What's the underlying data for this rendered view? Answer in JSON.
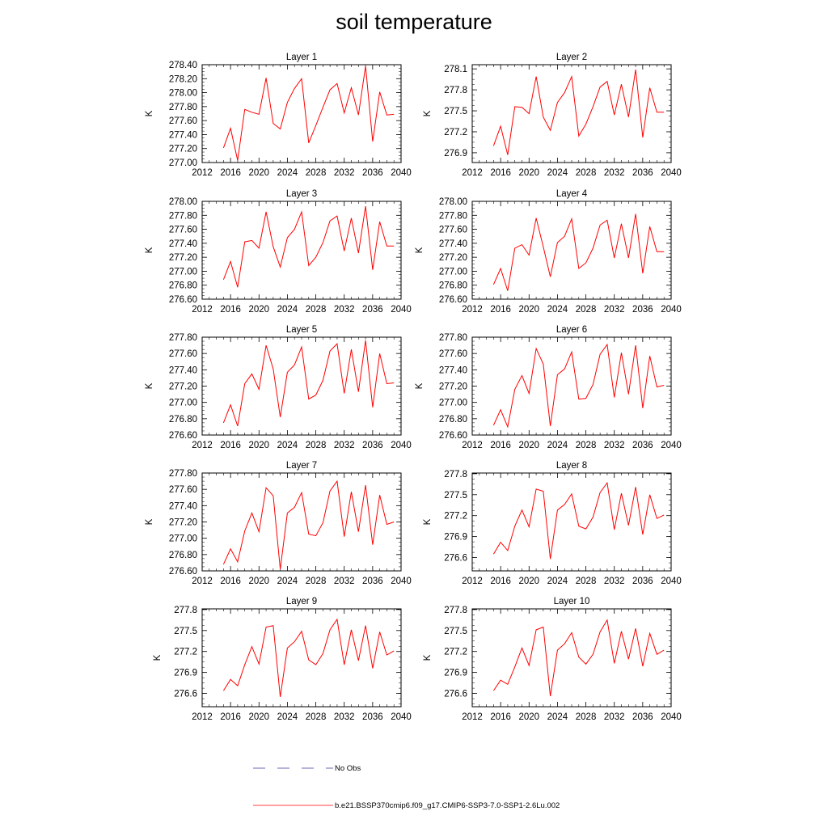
{
  "page_title": "soil temperature",
  "legend": {
    "no_obs_label": "No Obs",
    "no_obs_color": "#3a3aa0",
    "model_label": "b.e21.BSSP370cmip6.f09_g17.CMIP6-SSP3-7.0-SSP1-2.6Lu.002",
    "model_color": "#ff0000"
  },
  "chart_data": [
    {
      "type": "line",
      "title": "Layer 1",
      "ylabel": "K",
      "xlim": [
        2012,
        2040
      ],
      "xticks": [
        "2012",
        "2016",
        "2020",
        "2024",
        "2028",
        "2032",
        "2036",
        "2040"
      ],
      "ylim": [
        277.0,
        278.4
      ],
      "yticks": [
        "277.00",
        "277.20",
        "277.40",
        "277.60",
        "277.80",
        "278.00",
        "278.20",
        "278.40"
      ],
      "series": [
        {
          "x": [
            2015,
            2016,
            2017,
            2018,
            2019,
            2020,
            2021,
            2022,
            2023,
            2024,
            2025,
            2026,
            2027,
            2028,
            2029,
            2030,
            2031,
            2032,
            2033,
            2034,
            2035,
            2036,
            2037,
            2038,
            2039
          ],
          "values": [
            277.21,
            277.49,
            277.03,
            277.76,
            277.72,
            277.69,
            278.21,
            277.56,
            277.48,
            277.86,
            278.06,
            278.2,
            277.28,
            277.53,
            277.79,
            278.04,
            278.13,
            277.71,
            278.07,
            277.68,
            278.38,
            277.3,
            278.01,
            277.68,
            277.69
          ]
        }
      ]
    },
    {
      "type": "line",
      "title": "Layer 2",
      "ylabel": "K",
      "xlim": [
        2012,
        2040
      ],
      "xticks": [
        "2012",
        "2016",
        "2020",
        "2024",
        "2028",
        "2032",
        "2036",
        "2040"
      ],
      "ylim": [
        276.76,
        278.16
      ],
      "yticks": [
        "276.9",
        "277.2",
        "277.5",
        "277.8",
        "278.1"
      ],
      "series": [
        {
          "x": [
            2015,
            2016,
            2017,
            2018,
            2019,
            2020,
            2021,
            2022,
            2023,
            2024,
            2025,
            2026,
            2027,
            2028,
            2029,
            2030,
            2031,
            2032,
            2033,
            2034,
            2035,
            2036,
            2037,
            2038,
            2039
          ],
          "values": [
            277.0,
            277.28,
            276.87,
            277.56,
            277.55,
            277.46,
            277.99,
            277.41,
            277.22,
            277.62,
            277.76,
            277.99,
            277.14,
            277.31,
            277.56,
            277.84,
            277.92,
            277.44,
            277.88,
            277.41,
            278.09,
            277.12,
            277.83,
            277.48,
            277.48
          ]
        }
      ]
    },
    {
      "type": "line",
      "title": "Layer 3",
      "ylabel": "K",
      "xlim": [
        2012,
        2040
      ],
      "xticks": [
        "2012",
        "2016",
        "2020",
        "2024",
        "2028",
        "2032",
        "2036",
        "2040"
      ],
      "ylim": [
        276.6,
        278.0
      ],
      "yticks": [
        "276.60",
        "276.80",
        "277.00",
        "277.20",
        "277.40",
        "277.60",
        "277.80",
        "278.00"
      ],
      "series": [
        {
          "x": [
            2015,
            2016,
            2017,
            2018,
            2019,
            2020,
            2021,
            2022,
            2023,
            2024,
            2025,
            2026,
            2027,
            2028,
            2029,
            2030,
            2031,
            2032,
            2033,
            2034,
            2035,
            2036,
            2037,
            2038,
            2039
          ],
          "values": [
            276.88,
            277.14,
            276.77,
            277.42,
            277.44,
            277.33,
            277.85,
            277.35,
            277.06,
            277.48,
            277.6,
            277.85,
            277.08,
            277.2,
            277.41,
            277.72,
            277.79,
            277.29,
            277.76,
            277.26,
            277.93,
            277.02,
            277.71,
            277.36,
            277.36
          ]
        }
      ]
    },
    {
      "type": "line",
      "title": "Layer 4",
      "ylabel": "K",
      "xlim": [
        2012,
        2040
      ],
      "xticks": [
        "2012",
        "2016",
        "2020",
        "2024",
        "2028",
        "2032",
        "2036",
        "2040"
      ],
      "ylim": [
        276.6,
        278.0
      ],
      "yticks": [
        "276.60",
        "276.80",
        "277.00",
        "277.20",
        "277.40",
        "277.60",
        "277.80",
        "278.00"
      ],
      "series": [
        {
          "x": [
            2015,
            2016,
            2017,
            2018,
            2019,
            2020,
            2021,
            2022,
            2023,
            2024,
            2025,
            2026,
            2027,
            2028,
            2029,
            2030,
            2031,
            2032,
            2033,
            2034,
            2035,
            2036,
            2037,
            2038,
            2039
          ],
          "values": [
            276.81,
            277.04,
            276.72,
            277.33,
            277.38,
            277.23,
            277.76,
            277.35,
            276.92,
            277.41,
            277.5,
            277.75,
            277.04,
            277.12,
            277.33,
            277.66,
            277.73,
            277.19,
            277.68,
            277.19,
            277.82,
            276.97,
            277.64,
            277.28,
            277.28
          ]
        }
      ]
    },
    {
      "type": "line",
      "title": "Layer 5",
      "ylabel": "K",
      "xlim": [
        2012,
        2040
      ],
      "xticks": [
        "2012",
        "2016",
        "2020",
        "2024",
        "2028",
        "2032",
        "2036",
        "2040"
      ],
      "ylim": [
        276.6,
        277.8
      ],
      "yticks": [
        "276.60",
        "276.80",
        "277.00",
        "277.20",
        "277.40",
        "277.60",
        "277.80"
      ],
      "series": [
        {
          "x": [
            2015,
            2016,
            2017,
            2018,
            2019,
            2020,
            2021,
            2022,
            2023,
            2024,
            2025,
            2026,
            2027,
            2028,
            2029,
            2030,
            2031,
            2032,
            2033,
            2034,
            2035,
            2036,
            2037,
            2038,
            2039
          ],
          "values": [
            276.75,
            276.97,
            276.71,
            277.23,
            277.35,
            277.16,
            277.7,
            277.41,
            276.82,
            277.37,
            277.46,
            277.68,
            277.04,
            277.09,
            277.27,
            277.63,
            277.72,
            277.11,
            277.65,
            277.13,
            277.76,
            276.94,
            277.6,
            277.23,
            277.24
          ]
        }
      ]
    },
    {
      "type": "line",
      "title": "Layer 6",
      "ylabel": "K",
      "xlim": [
        2012,
        2040
      ],
      "xticks": [
        "2012",
        "2016",
        "2020",
        "2024",
        "2028",
        "2032",
        "2036",
        "2040"
      ],
      "ylim": [
        276.6,
        277.8
      ],
      "yticks": [
        "276.60",
        "276.80",
        "277.00",
        "277.20",
        "277.40",
        "277.60",
        "277.80"
      ],
      "series": [
        {
          "x": [
            2015,
            2016,
            2017,
            2018,
            2019,
            2020,
            2021,
            2022,
            2023,
            2024,
            2025,
            2026,
            2027,
            2028,
            2029,
            2030,
            2031,
            2032,
            2033,
            2034,
            2035,
            2036,
            2037,
            2038,
            2039
          ],
          "values": [
            276.72,
            276.91,
            276.7,
            277.16,
            277.33,
            277.11,
            277.66,
            277.47,
            276.71,
            277.34,
            277.41,
            277.62,
            277.04,
            277.05,
            277.22,
            277.59,
            277.71,
            277.06,
            277.61,
            277.1,
            277.7,
            276.93,
            277.57,
            277.19,
            277.21
          ]
        }
      ]
    },
    {
      "type": "line",
      "title": "Layer 7",
      "ylabel": "K",
      "xlim": [
        2012,
        2040
      ],
      "xticks": [
        "2012",
        "2016",
        "2020",
        "2024",
        "2028",
        "2032",
        "2036",
        "2040"
      ],
      "ylim": [
        276.6,
        277.8
      ],
      "yticks": [
        "276.60",
        "276.80",
        "277.00",
        "277.20",
        "277.40",
        "277.60",
        "277.80"
      ],
      "series": [
        {
          "x": [
            2015,
            2016,
            2017,
            2018,
            2019,
            2020,
            2021,
            2022,
            2023,
            2024,
            2025,
            2026,
            2027,
            2028,
            2029,
            2030,
            2031,
            2032,
            2033,
            2034,
            2035,
            2036,
            2037,
            2038,
            2039
          ],
          "values": [
            276.68,
            276.87,
            276.71,
            277.09,
            277.31,
            277.08,
            277.62,
            277.52,
            276.62,
            277.31,
            277.38,
            277.56,
            277.05,
            277.03,
            277.19,
            277.58,
            277.7,
            277.02,
            277.57,
            277.08,
            277.65,
            276.92,
            277.53,
            277.17,
            277.2
          ]
        }
      ]
    },
    {
      "type": "line",
      "title": "Layer 8",
      "ylabel": "K",
      "xlim": [
        2012,
        2040
      ],
      "xticks": [
        "2012",
        "2016",
        "2020",
        "2024",
        "2028",
        "2032",
        "2036",
        "2040"
      ],
      "ylim": [
        276.41,
        277.81
      ],
      "yticks": [
        "276.6",
        "276.9",
        "277.2",
        "277.5",
        "277.8"
      ],
      "series": [
        {
          "x": [
            2015,
            2016,
            2017,
            2018,
            2019,
            2020,
            2021,
            2022,
            2023,
            2024,
            2025,
            2026,
            2027,
            2028,
            2029,
            2030,
            2031,
            2032,
            2033,
            2034,
            2035,
            2036,
            2037,
            2038,
            2039
          ],
          "values": [
            276.65,
            276.82,
            276.7,
            277.05,
            277.28,
            277.04,
            277.58,
            277.55,
            276.58,
            277.28,
            277.36,
            277.51,
            277.05,
            277.01,
            277.18,
            277.53,
            277.67,
            277.0,
            277.52,
            277.06,
            277.61,
            276.93,
            277.5,
            277.16,
            277.21
          ]
        }
      ]
    },
    {
      "type": "line",
      "title": "Layer 9",
      "ylabel": "K",
      "xlim": [
        2012,
        2040
      ],
      "xticks": [
        "2012",
        "2016",
        "2020",
        "2024",
        "2028",
        "2032",
        "2036",
        "2040"
      ],
      "ylim": [
        276.41,
        277.81
      ],
      "yticks": [
        "276.6",
        "276.9",
        "277.2",
        "277.5",
        "277.8"
      ],
      "series": [
        {
          "x": [
            2015,
            2016,
            2017,
            2018,
            2019,
            2020,
            2021,
            2022,
            2023,
            2024,
            2025,
            2026,
            2027,
            2028,
            2029,
            2030,
            2031,
            2032,
            2033,
            2034,
            2035,
            2036,
            2037,
            2038,
            2039
          ],
          "values": [
            276.64,
            276.8,
            276.71,
            277.01,
            277.27,
            277.02,
            277.55,
            277.57,
            276.55,
            277.25,
            277.34,
            277.49,
            277.08,
            277.01,
            277.17,
            277.51,
            277.66,
            277.01,
            277.51,
            277.07,
            277.57,
            276.96,
            277.48,
            277.15,
            277.21
          ]
        }
      ]
    },
    {
      "type": "line",
      "title": "Layer 10",
      "ylabel": "K",
      "xlim": [
        2012,
        2040
      ],
      "xticks": [
        "2012",
        "2016",
        "2020",
        "2024",
        "2028",
        "2032",
        "2036",
        "2040"
      ],
      "ylim": [
        276.41,
        277.81
      ],
      "yticks": [
        "276.6",
        "276.9",
        "277.2",
        "277.5",
        "277.8"
      ],
      "series": [
        {
          "x": [
            2015,
            2016,
            2017,
            2018,
            2019,
            2020,
            2021,
            2022,
            2023,
            2024,
            2025,
            2026,
            2027,
            2028,
            2029,
            2030,
            2031,
            2032,
            2033,
            2034,
            2035,
            2036,
            2037,
            2038,
            2039
          ],
          "values": [
            276.64,
            276.79,
            276.73,
            276.98,
            277.25,
            277.0,
            277.51,
            277.55,
            276.56,
            277.22,
            277.31,
            277.47,
            277.12,
            277.02,
            277.16,
            277.48,
            277.65,
            277.03,
            277.49,
            277.09,
            277.53,
            276.99,
            277.46,
            277.16,
            277.22
          ]
        }
      ]
    }
  ]
}
